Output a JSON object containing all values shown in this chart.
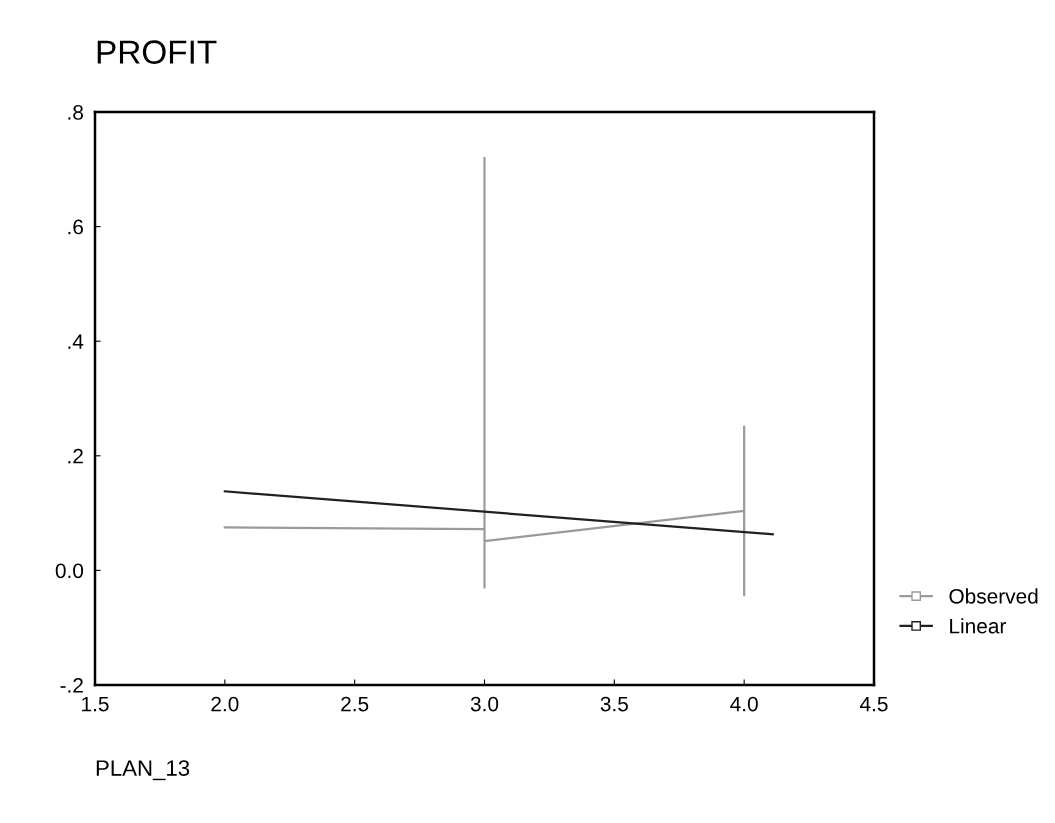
{
  "chart_data": {
    "type": "line",
    "title": "PROFIT",
    "xlabel": "PLAN_13",
    "series": [
      {
        "name": "Observed",
        "color": "#9a9a9a",
        "x": [
          2.0,
          3.0,
          3.0,
          3.0,
          3.0,
          4.0,
          4.0,
          4.0
        ],
        "values": [
          0.075,
          0.072,
          0.72,
          -0.03,
          0.051,
          0.104,
          0.251,
          -0.043
        ]
      },
      {
        "name": "Linear",
        "color": "#202020",
        "x": [
          2.0,
          4.11
        ],
        "values": [
          0.138,
          0.063
        ]
      }
    ],
    "xlim": [
      1.5,
      4.5
    ],
    "xticks": [
      1.5,
      {
        "value": 2,
        "label": "2.0"
      },
      2.5,
      {
        "value": 3,
        "label": "3.0"
      },
      3.5,
      {
        "value": 4,
        "label": "4.0"
      },
      4.5
    ],
    "ylim": [
      -0.2,
      0.8
    ],
    "yticks": [
      {
        "value": -0.2,
        "label": "-.2"
      },
      {
        "value": 0.0,
        "label": "0.0"
      },
      {
        "value": 0.2,
        "label": ".2"
      },
      {
        "value": 0.4,
        "label": ".4"
      },
      {
        "value": 0.6,
        "label": ".6"
      },
      {
        "value": 0.8,
        "label": ".8"
      }
    ],
    "grid": false,
    "legend": "bottom right",
    "marker": "none",
    "line_style": "solid"
  }
}
